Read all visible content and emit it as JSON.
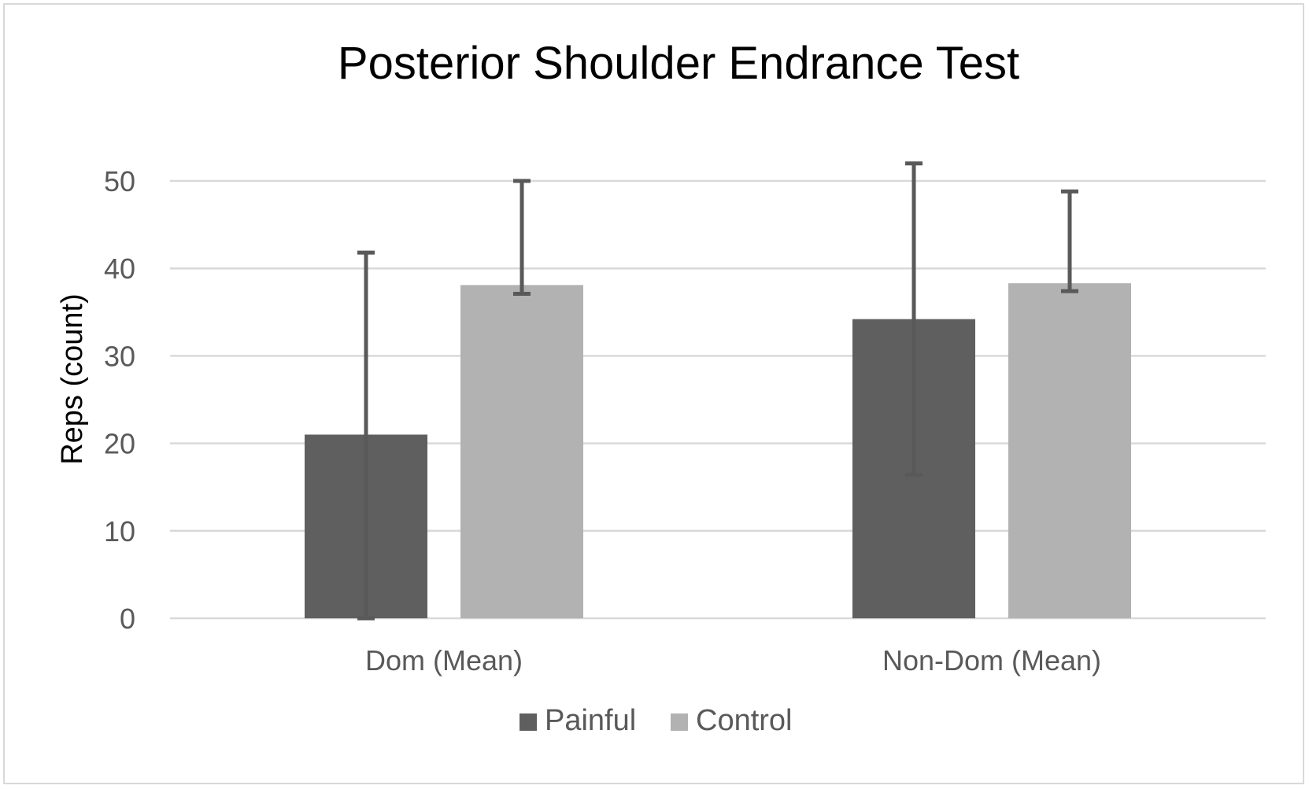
{
  "chart_data": {
    "type": "bar",
    "title": "Posterior Shoulder Endrance Test",
    "xlabel": "",
    "ylabel": "Reps (count)",
    "ylim": [
      0,
      50
    ],
    "yticks": [
      0,
      10,
      20,
      30,
      40,
      50
    ],
    "grid": true,
    "legend_position": "bottom",
    "categories": [
      "Dom (Mean)",
      "Non-Dom (Mean)"
    ],
    "series": [
      {
        "name": "Painful",
        "color": "#5f5f5f",
        "values": [
          21,
          34.2
        ],
        "error_upper": [
          41.8,
          52.0
        ],
        "error_lower": [
          0,
          16.4
        ]
      },
      {
        "name": "Control",
        "color": "#b2b2b2",
        "values": [
          38.1,
          38.3
        ],
        "error_upper": [
          50.0,
          48.8
        ],
        "error_lower": [
          37.1,
          37.4
        ]
      }
    ],
    "error_bar_color": "#595959",
    "gridline_color": "#d9d9d9"
  }
}
